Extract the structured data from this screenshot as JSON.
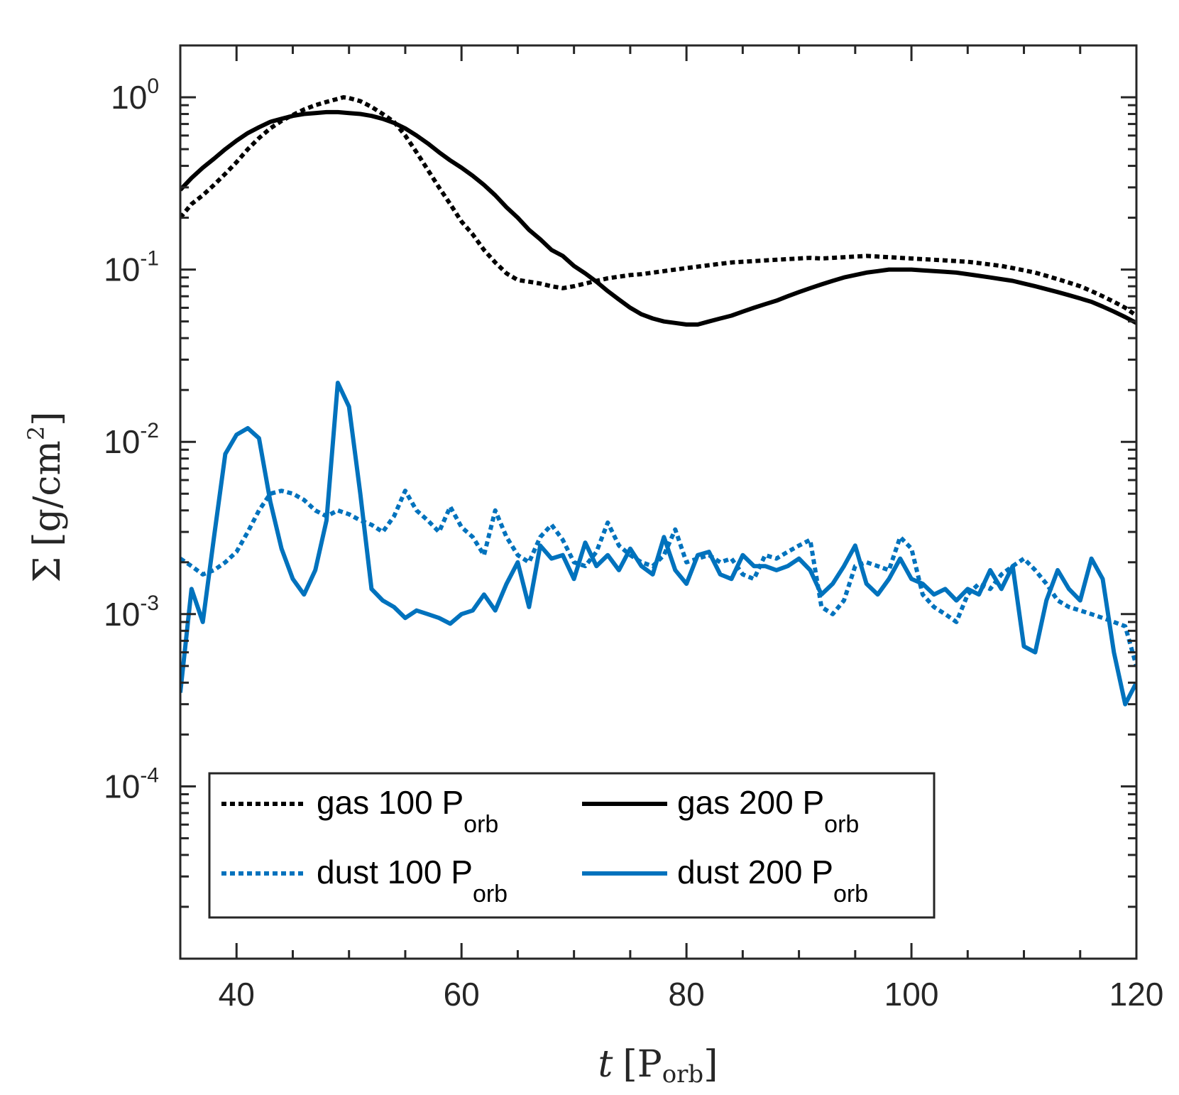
{
  "chart_data": {
    "type": "line",
    "title": "",
    "xlabel": {
      "symbol": "t",
      "unit": "P",
      "unit_sub": "orb"
    },
    "ylabel": {
      "symbol": "Σ",
      "unit": "g/cm",
      "unit_sup": "2"
    },
    "xlim": [
      35,
      120
    ],
    "ylim": [
      1e-05,
      2
    ],
    "yscale": "log",
    "grid": false,
    "legend_position": "bottom-left",
    "x_ticks": [
      40,
      60,
      80,
      100,
      120
    ],
    "x_tick_labels": [
      "40",
      "60",
      "80",
      "100",
      "120"
    ],
    "y_ticks": [
      {
        "value": 1,
        "base": "10",
        "exp": "0"
      },
      {
        "value": 0.1,
        "base": "10",
        "exp": "-1"
      },
      {
        "value": 0.01,
        "base": "10",
        "exp": "-2"
      },
      {
        "value": 0.001,
        "base": "10",
        "exp": "-3"
      },
      {
        "value": 0.0001,
        "base": "10",
        "exp": "-4"
      }
    ],
    "series": [
      {
        "name": "gas 100",
        "name_sub": "orb",
        "name_p": "P",
        "color": "#000000",
        "style": "dotted",
        "x": [
          35,
          36,
          37,
          38,
          39,
          40,
          41,
          42,
          43,
          44,
          45,
          46,
          47,
          48,
          49,
          49.5,
          50,
          51,
          52,
          53,
          54,
          55,
          56,
          57,
          58,
          59,
          60,
          61,
          62,
          63,
          64,
          65,
          66,
          67,
          68,
          69,
          70,
          71,
          72,
          73,
          74,
          75,
          76,
          77,
          78,
          79,
          80,
          81,
          82,
          83,
          84,
          85,
          86,
          87,
          88,
          89,
          90,
          91,
          92,
          93,
          94,
          95,
          96,
          97,
          98,
          99,
          100,
          101,
          102,
          103,
          104,
          105,
          106,
          107,
          108,
          109,
          110,
          111,
          112,
          113,
          114,
          115,
          116,
          117,
          118,
          119,
          120
        ],
        "y": [
          0.2,
          0.24,
          0.27,
          0.31,
          0.36,
          0.42,
          0.5,
          0.58,
          0.66,
          0.73,
          0.79,
          0.85,
          0.9,
          0.94,
          0.98,
          1.0,
          0.99,
          0.95,
          0.88,
          0.8,
          0.72,
          0.6,
          0.48,
          0.38,
          0.3,
          0.24,
          0.19,
          0.16,
          0.13,
          0.11,
          0.095,
          0.087,
          0.085,
          0.083,
          0.08,
          0.078,
          0.08,
          0.083,
          0.086,
          0.089,
          0.091,
          0.093,
          0.094,
          0.096,
          0.098,
          0.1,
          0.102,
          0.104,
          0.106,
          0.108,
          0.11,
          0.111,
          0.112,
          0.113,
          0.114,
          0.115,
          0.116,
          0.117,
          0.116,
          0.117,
          0.118,
          0.119,
          0.12,
          0.119,
          0.118,
          0.117,
          0.116,
          0.115,
          0.114,
          0.113,
          0.112,
          0.111,
          0.109,
          0.107,
          0.105,
          0.102,
          0.099,
          0.096,
          0.092,
          0.088,
          0.084,
          0.08,
          0.075,
          0.07,
          0.065,
          0.06,
          0.054
        ]
      },
      {
        "name": "gas 200",
        "name_sub": "orb",
        "name_p": "P",
        "color": "#000000",
        "style": "solid",
        "x": [
          35,
          36,
          37,
          38,
          39,
          40,
          41,
          42,
          43,
          44,
          45,
          46,
          47,
          48,
          49,
          50,
          51,
          52,
          53,
          54,
          55,
          56,
          57,
          58,
          59,
          60,
          61,
          62,
          63,
          64,
          65,
          66,
          67,
          68,
          69,
          70,
          71,
          72,
          73,
          74,
          75,
          76,
          77,
          78,
          79,
          80,
          81,
          82,
          83,
          84,
          85,
          86,
          87,
          88,
          89,
          90,
          91,
          92,
          93,
          94,
          95,
          96,
          97,
          98,
          99,
          100,
          101,
          102,
          103,
          104,
          105,
          106,
          107,
          108,
          109,
          110,
          111,
          112,
          113,
          114,
          115,
          116,
          117,
          118,
          119,
          120
        ],
        "y": [
          0.29,
          0.34,
          0.39,
          0.44,
          0.5,
          0.56,
          0.62,
          0.67,
          0.72,
          0.75,
          0.78,
          0.8,
          0.81,
          0.82,
          0.82,
          0.81,
          0.8,
          0.78,
          0.75,
          0.71,
          0.66,
          0.6,
          0.54,
          0.48,
          0.43,
          0.39,
          0.35,
          0.31,
          0.27,
          0.23,
          0.2,
          0.17,
          0.15,
          0.13,
          0.12,
          0.105,
          0.095,
          0.085,
          0.075,
          0.067,
          0.06,
          0.055,
          0.052,
          0.05,
          0.049,
          0.048,
          0.048,
          0.05,
          0.052,
          0.054,
          0.057,
          0.06,
          0.063,
          0.066,
          0.07,
          0.074,
          0.078,
          0.082,
          0.086,
          0.09,
          0.093,
          0.096,
          0.098,
          0.1,
          0.1,
          0.1,
          0.099,
          0.098,
          0.097,
          0.096,
          0.094,
          0.092,
          0.09,
          0.088,
          0.086,
          0.083,
          0.08,
          0.077,
          0.074,
          0.071,
          0.068,
          0.065,
          0.061,
          0.057,
          0.053,
          0.049
        ]
      },
      {
        "name": "dust 100",
        "name_sub": "orb",
        "name_p": "P",
        "color": "#0072BD",
        "style": "dotted",
        "x": [
          35,
          36,
          37,
          38,
          39,
          40,
          41,
          42,
          43,
          44,
          45,
          46,
          47,
          48,
          49,
          50,
          51,
          52,
          53,
          54,
          55,
          56,
          57,
          58,
          59,
          60,
          61,
          62,
          63,
          64,
          65,
          66,
          67,
          68,
          69,
          70,
          71,
          72,
          73,
          74,
          75,
          76,
          77,
          78,
          79,
          80,
          81,
          82,
          83,
          84,
          85,
          86,
          87,
          88,
          89,
          90,
          91,
          92,
          93,
          94,
          95,
          96,
          97,
          98,
          99,
          100,
          101,
          102,
          103,
          104,
          105,
          106,
          107,
          108,
          109,
          110,
          111,
          112,
          113,
          114,
          115,
          116,
          117,
          118,
          119,
          120
        ],
        "y": [
          0.0021,
          0.0019,
          0.0017,
          0.0018,
          0.002,
          0.0023,
          0.003,
          0.004,
          0.005,
          0.0052,
          0.005,
          0.0046,
          0.004,
          0.0037,
          0.004,
          0.0038,
          0.0035,
          0.0033,
          0.003,
          0.0037,
          0.0052,
          0.004,
          0.0035,
          0.003,
          0.0042,
          0.0032,
          0.0028,
          0.0022,
          0.004,
          0.0028,
          0.0022,
          0.002,
          0.0028,
          0.0033,
          0.0027,
          0.002,
          0.0019,
          0.0023,
          0.0034,
          0.0025,
          0.0022,
          0.002,
          0.0019,
          0.0022,
          0.0031,
          0.002,
          0.0021,
          0.0022,
          0.002,
          0.0021,
          0.0017,
          0.0016,
          0.0022,
          0.0021,
          0.0023,
          0.0025,
          0.0027,
          0.0011,
          0.001,
          0.0012,
          0.0019,
          0.002,
          0.0019,
          0.0018,
          0.0028,
          0.0024,
          0.0013,
          0.0011,
          0.001,
          0.0009,
          0.0013,
          0.0015,
          0.0014,
          0.0017,
          0.0019,
          0.0021,
          0.0018,
          0.0015,
          0.0012,
          0.0011,
          0.00105,
          0.001,
          0.00095,
          0.0009,
          0.00085,
          0.0005
        ]
      },
      {
        "name": "dust 200",
        "name_sub": "orb",
        "name_p": "P",
        "color": "#0072BD",
        "style": "solid",
        "x": [
          35,
          36,
          37,
          38,
          39,
          40,
          41,
          42,
          43,
          44,
          45,
          46,
          47,
          48,
          49,
          50,
          51,
          52,
          53,
          54,
          55,
          56,
          57,
          58,
          59,
          60,
          61,
          62,
          63,
          64,
          65,
          66,
          67,
          68,
          69,
          70,
          71,
          72,
          73,
          74,
          75,
          76,
          77,
          78,
          79,
          80,
          81,
          82,
          83,
          84,
          85,
          86,
          87,
          88,
          89,
          90,
          91,
          92,
          93,
          94,
          95,
          96,
          97,
          98,
          99,
          100,
          101,
          102,
          103,
          104,
          105,
          106,
          107,
          108,
          109,
          110,
          111,
          112,
          113,
          114,
          115,
          116,
          117,
          118,
          119,
          120
        ],
        "y": [
          0.00035,
          0.0014,
          0.0009,
          0.0028,
          0.0085,
          0.011,
          0.012,
          0.0105,
          0.0045,
          0.0024,
          0.0016,
          0.0013,
          0.0018,
          0.0035,
          0.022,
          0.016,
          0.005,
          0.0014,
          0.0012,
          0.0011,
          0.00095,
          0.00105,
          0.001,
          0.00095,
          0.00088,
          0.001,
          0.00105,
          0.0013,
          0.00105,
          0.0015,
          0.002,
          0.0011,
          0.0025,
          0.0021,
          0.0022,
          0.0016,
          0.0026,
          0.0019,
          0.0022,
          0.0018,
          0.0024,
          0.0019,
          0.0017,
          0.0028,
          0.0018,
          0.0015,
          0.0022,
          0.0023,
          0.0017,
          0.0016,
          0.0022,
          0.0019,
          0.0019,
          0.0018,
          0.0019,
          0.0021,
          0.0018,
          0.0013,
          0.0015,
          0.0019,
          0.0025,
          0.0015,
          0.0013,
          0.0016,
          0.0021,
          0.0016,
          0.0015,
          0.0013,
          0.0014,
          0.0012,
          0.0014,
          0.0013,
          0.0018,
          0.0014,
          0.0019,
          0.00065,
          0.0006,
          0.0012,
          0.0018,
          0.0014,
          0.0012,
          0.0021,
          0.0016,
          0.0006,
          0.0003,
          0.0004
        ]
      }
    ]
  }
}
